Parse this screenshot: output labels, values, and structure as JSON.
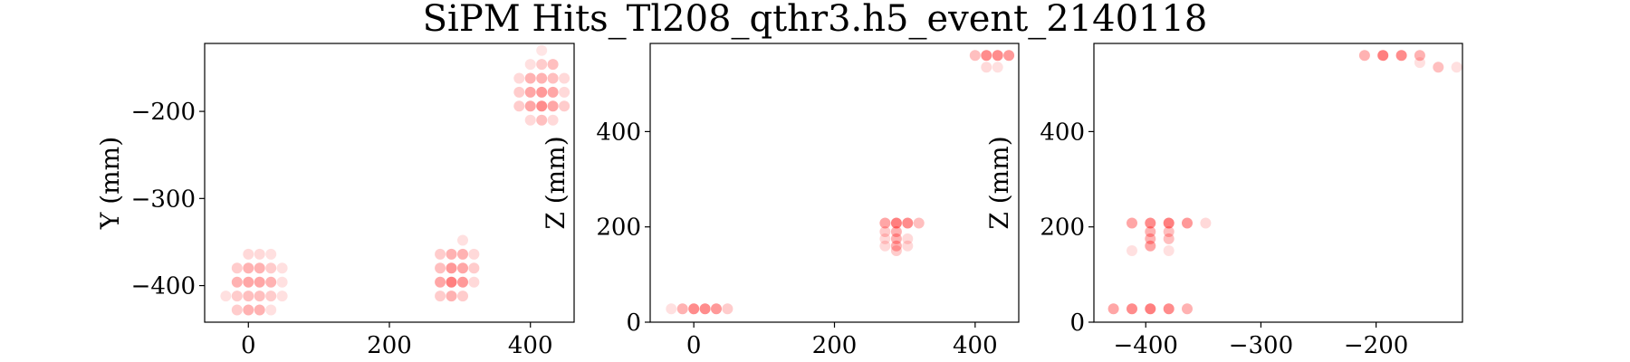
{
  "title": "SiPM Hits_Tl208_qthr3.h5_event_2140118",
  "marker_color": "#ff0000",
  "chart_data": [
    {
      "type": "scatter",
      "xlabel": "",
      "ylabel": "Y (mm)",
      "xlim": [
        -62,
        462
      ],
      "ylim": [
        -442,
        -122
      ],
      "xticks": [
        0,
        200,
        400
      ],
      "yticks": [
        -400,
        -300,
        -200
      ],
      "tick_labels_x": [
        "0",
        "200",
        "400"
      ],
      "tick_labels_y": [
        "−400",
        "−300",
        "−200"
      ],
      "points": [
        [
          -32,
          -412,
          0.12
        ],
        [
          -16,
          -412,
          0.2
        ],
        [
          0,
          -412,
          0.25
        ],
        [
          16,
          -412,
          0.25
        ],
        [
          32,
          -412,
          0.2
        ],
        [
          48,
          -412,
          0.12
        ],
        [
          -16,
          -428,
          0.2
        ],
        [
          0,
          -428,
          0.3
        ],
        [
          16,
          -428,
          0.3
        ],
        [
          32,
          -428,
          0.12
        ],
        [
          -16,
          -396,
          0.3
        ],
        [
          0,
          -396,
          0.35
        ],
        [
          16,
          -396,
          0.35
        ],
        [
          32,
          -396,
          0.3
        ],
        [
          48,
          -396,
          0.12
        ],
        [
          -16,
          -380,
          0.2
        ],
        [
          0,
          -380,
          0.3
        ],
        [
          16,
          -380,
          0.3
        ],
        [
          32,
          -380,
          0.2
        ],
        [
          48,
          -380,
          0.12
        ],
        [
          0,
          -364,
          0.15
        ],
        [
          16,
          -364,
          0.15
        ],
        [
          32,
          -364,
          0.12
        ],
        [
          272,
          -412,
          0.2
        ],
        [
          288,
          -412,
          0.3
        ],
        [
          304,
          -412,
          0.2
        ],
        [
          272,
          -396,
          0.35
        ],
        [
          288,
          -396,
          0.5
        ],
        [
          304,
          -396,
          0.4
        ],
        [
          320,
          -396,
          0.15
        ],
        [
          272,
          -380,
          0.25
        ],
        [
          288,
          -380,
          0.4
        ],
        [
          304,
          -380,
          0.35
        ],
        [
          320,
          -380,
          0.2
        ],
        [
          272,
          -364,
          0.2
        ],
        [
          288,
          -364,
          0.3
        ],
        [
          304,
          -364,
          0.3
        ],
        [
          320,
          -364,
          0.15
        ],
        [
          304,
          -348,
          0.12
        ],
        [
          400,
          -210,
          0.15
        ],
        [
          416,
          -210,
          0.25
        ],
        [
          432,
          -210,
          0.15
        ],
        [
          384,
          -194,
          0.2
        ],
        [
          400,
          -194,
          0.35
        ],
        [
          416,
          -194,
          0.45
        ],
        [
          432,
          -194,
          0.35
        ],
        [
          448,
          -194,
          0.2
        ],
        [
          384,
          -178,
          0.2
        ],
        [
          400,
          -178,
          0.35
        ],
        [
          416,
          -178,
          0.4
        ],
        [
          432,
          -178,
          0.35
        ],
        [
          448,
          -178,
          0.15
        ],
        [
          384,
          -162,
          0.15
        ],
        [
          400,
          -162,
          0.3
        ],
        [
          416,
          -162,
          0.3
        ],
        [
          432,
          -162,
          0.25
        ],
        [
          448,
          -162,
          0.15
        ],
        [
          400,
          -146,
          0.12
        ],
        [
          416,
          -146,
          0.2
        ],
        [
          432,
          -146,
          0.25
        ],
        [
          416,
          -130,
          0.1
        ]
      ]
    },
    {
      "type": "scatter",
      "xlabel": "",
      "ylabel": "Z (mm)",
      "xlim": [
        -62,
        462
      ],
      "ylim": [
        0,
        585
      ],
      "xticks": [
        0,
        200,
        400
      ],
      "yticks": [
        0,
        200,
        400
      ],
      "tick_labels_x": [
        "0",
        "200",
        "400"
      ],
      "tick_labels_y": [
        "0",
        "200",
        "400"
      ],
      "points": [
        [
          -32,
          28,
          0.12
        ],
        [
          -16,
          28,
          0.3
        ],
        [
          0,
          28,
          0.45
        ],
        [
          16,
          28,
          0.45
        ],
        [
          32,
          28,
          0.4
        ],
        [
          48,
          28,
          0.2
        ],
        [
          272,
          208,
          0.35
        ],
        [
          288,
          208,
          0.5
        ],
        [
          304,
          208,
          0.45
        ],
        [
          320,
          208,
          0.25
        ],
        [
          272,
          190,
          0.2
        ],
        [
          288,
          190,
          0.3
        ],
        [
          272,
          175,
          0.15
        ],
        [
          288,
          175,
          0.3
        ],
        [
          304,
          175,
          0.15
        ],
        [
          272,
          160,
          0.15
        ],
        [
          288,
          160,
          0.3
        ],
        [
          304,
          160,
          0.15
        ],
        [
          288,
          150,
          0.2
        ],
        [
          400,
          560,
          0.25
        ],
        [
          416,
          560,
          0.45
        ],
        [
          432,
          560,
          0.45
        ],
        [
          448,
          560,
          0.4
        ],
        [
          416,
          535,
          0.15
        ],
        [
          432,
          535,
          0.12
        ]
      ]
    },
    {
      "type": "scatter",
      "xlabel": "",
      "ylabel": "Z (mm)",
      "xlim": [
        -445,
        -125
      ],
      "ylim": [
        0,
        585
      ],
      "xticks": [
        -400,
        -300,
        -200
      ],
      "yticks": [
        0,
        200,
        400
      ],
      "tick_labels_x": [
        "−400",
        "−300",
        "−200"
      ],
      "tick_labels_y": [
        "0",
        "200",
        "400"
      ],
      "points": [
        [
          -428,
          28,
          0.35
        ],
        [
          -412,
          28,
          0.45
        ],
        [
          -396,
          28,
          0.5
        ],
        [
          -380,
          28,
          0.45
        ],
        [
          -364,
          28,
          0.3
        ],
        [
          -412,
          208,
          0.35
        ],
        [
          -396,
          208,
          0.45
        ],
        [
          -380,
          208,
          0.5
        ],
        [
          -364,
          208,
          0.4
        ],
        [
          -348,
          208,
          0.15
        ],
        [
          -412,
          150,
          0.12
        ],
        [
          -396,
          190,
          0.3
        ],
        [
          -396,
          175,
          0.3
        ],
        [
          -396,
          160,
          0.35
        ],
        [
          -380,
          190,
          0.25
        ],
        [
          -380,
          175,
          0.25
        ],
        [
          -380,
          150,
          0.12
        ],
        [
          -210,
          560,
          0.3
        ],
        [
          -194,
          560,
          0.5
        ],
        [
          -178,
          560,
          0.45
        ],
        [
          -162,
          560,
          0.3
        ],
        [
          -162,
          545,
          0.12
        ],
        [
          -146,
          535,
          0.25
        ],
        [
          -130,
          535,
          0.12
        ]
      ]
    }
  ]
}
